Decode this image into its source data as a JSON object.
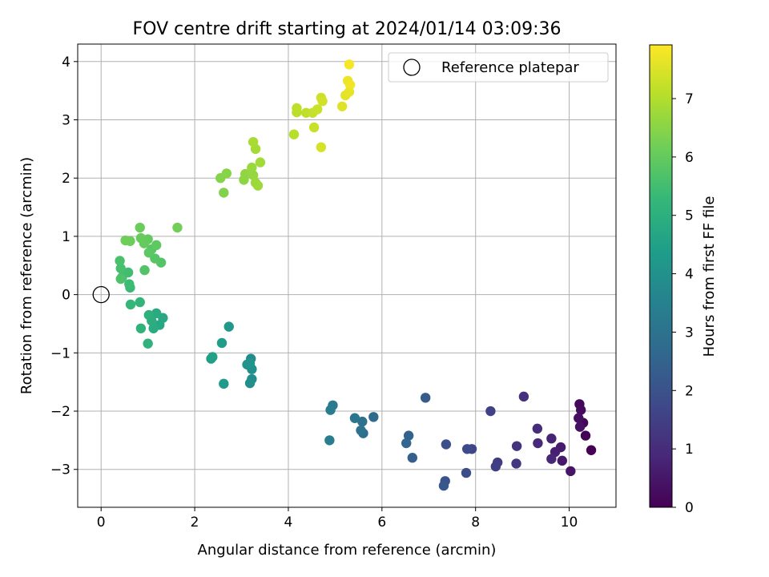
{
  "chart_data": {
    "type": "scatter",
    "title": "FOV centre drift starting at 2024/01/14 03:09:36",
    "xlabel": "Angular distance from reference (arcmin)",
    "ylabel": "Rotation from reference (arcmin)",
    "xlim": [
      -0.5,
      11.0
    ],
    "ylim": [
      -3.65,
      4.3
    ],
    "xticks": [
      0,
      2,
      4,
      6,
      8,
      10
    ],
    "yticks": [
      -3,
      -2,
      -1,
      0,
      1,
      2,
      3,
      4
    ],
    "grid": true,
    "legend": {
      "position": "top-right",
      "entries": [
        "Reference platepar"
      ]
    },
    "reference_point": {
      "label": "Reference platepar",
      "x": 0,
      "y": 0
    },
    "colorbar": {
      "label": "Hours from first FF file",
      "range": [
        0,
        7.92
      ],
      "ticks": [
        0,
        1,
        2,
        3,
        4,
        5,
        6,
        7
      ],
      "colormap": "viridis"
    },
    "points": [
      {
        "x": 10.47,
        "y": -2.67,
        "h": 0.0
      },
      {
        "x": 10.35,
        "y": -2.42,
        "h": 0.06
      },
      {
        "x": 10.3,
        "y": -2.2,
        "h": 0.12
      },
      {
        "x": 10.22,
        "y": -1.88,
        "h": 0.18
      },
      {
        "x": 10.25,
        "y": -1.98,
        "h": 0.24
      },
      {
        "x": 10.2,
        "y": -2.12,
        "h": 0.3
      },
      {
        "x": 10.23,
        "y": -2.27,
        "h": 0.36
      },
      {
        "x": 10.03,
        "y": -3.03,
        "h": 0.45
      },
      {
        "x": 9.85,
        "y": -2.85,
        "h": 0.55
      },
      {
        "x": 9.82,
        "y": -2.62,
        "h": 0.62
      },
      {
        "x": 9.7,
        "y": -2.7,
        "h": 0.7
      },
      {
        "x": 9.62,
        "y": -2.47,
        "h": 0.78
      },
      {
        "x": 9.62,
        "y": -2.82,
        "h": 0.86
      },
      {
        "x": 9.33,
        "y": -2.55,
        "h": 0.94
      },
      {
        "x": 9.32,
        "y": -2.3,
        "h": 1.02
      },
      {
        "x": 9.03,
        "y": -1.75,
        "h": 1.1
      },
      {
        "x": 8.88,
        "y": -2.6,
        "h": 1.2
      },
      {
        "x": 8.87,
        "y": -2.9,
        "h": 1.28
      },
      {
        "x": 8.47,
        "y": -2.88,
        "h": 1.4
      },
      {
        "x": 8.43,
        "y": -2.95,
        "h": 1.48
      },
      {
        "x": 8.32,
        "y": -2.0,
        "h": 1.56
      },
      {
        "x": 7.92,
        "y": -2.65,
        "h": 1.65
      },
      {
        "x": 7.82,
        "y": -2.65,
        "h": 1.75
      },
      {
        "x": 7.8,
        "y": -3.06,
        "h": 1.84
      },
      {
        "x": 7.37,
        "y": -2.57,
        "h": 1.95
      },
      {
        "x": 7.35,
        "y": -3.2,
        "h": 2.05
      },
      {
        "x": 7.32,
        "y": -3.28,
        "h": 2.14
      },
      {
        "x": 6.93,
        "y": -1.77,
        "h": 2.3
      },
      {
        "x": 6.65,
        "y": -2.8,
        "h": 2.4
      },
      {
        "x": 6.57,
        "y": -2.42,
        "h": 2.5
      },
      {
        "x": 6.52,
        "y": -2.55,
        "h": 2.58
      },
      {
        "x": 5.82,
        "y": -2.1,
        "h": 2.75
      },
      {
        "x": 5.6,
        "y": -2.38,
        "h": 2.85
      },
      {
        "x": 5.58,
        "y": -2.18,
        "h": 2.93
      },
      {
        "x": 5.55,
        "y": -2.33,
        "h": 3.0
      },
      {
        "x": 5.42,
        "y": -2.12,
        "h": 3.08
      },
      {
        "x": 4.95,
        "y": -1.9,
        "h": 3.2
      },
      {
        "x": 4.9,
        "y": -1.98,
        "h": 3.28
      },
      {
        "x": 4.88,
        "y": -2.5,
        "h": 3.36
      },
      {
        "x": 3.2,
        "y": -1.1,
        "h": 3.8
      },
      {
        "x": 3.22,
        "y": -1.45,
        "h": 3.88
      },
      {
        "x": 3.18,
        "y": -1.52,
        "h": 3.94
      },
      {
        "x": 3.22,
        "y": -1.28,
        "h": 4.0
      },
      {
        "x": 3.12,
        "y": -1.2,
        "h": 4.06
      },
      {
        "x": 3.18,
        "y": -1.18,
        "h": 4.12
      },
      {
        "x": 2.73,
        "y": -0.55,
        "h": 4.2
      },
      {
        "x": 2.62,
        "y": -1.53,
        "h": 4.28
      },
      {
        "x": 2.58,
        "y": -0.83,
        "h": 4.36
      },
      {
        "x": 2.35,
        "y": -1.1,
        "h": 4.44
      },
      {
        "x": 2.38,
        "y": -1.07,
        "h": 4.5
      },
      {
        "x": 1.32,
        "y": -0.4,
        "h": 4.7
      },
      {
        "x": 1.25,
        "y": -0.52,
        "h": 4.76
      },
      {
        "x": 1.18,
        "y": -0.32,
        "h": 4.82
      },
      {
        "x": 1.12,
        "y": -0.58,
        "h": 4.88
      },
      {
        "x": 1.08,
        "y": -0.45,
        "h": 4.94
      },
      {
        "x": 1.02,
        "y": -0.35,
        "h": 5.0
      },
      {
        "x": 1.0,
        "y": -0.84,
        "h": 5.06
      },
      {
        "x": 0.85,
        "y": -0.58,
        "h": 5.12
      },
      {
        "x": 0.83,
        "y": -0.13,
        "h": 5.18
      },
      {
        "x": 0.63,
        "y": -0.17,
        "h": 5.26
      },
      {
        "x": 0.62,
        "y": 0.12,
        "h": 5.34
      },
      {
        "x": 0.6,
        "y": 0.18,
        "h": 5.4
      },
      {
        "x": 0.58,
        "y": 0.38,
        "h": 5.46
      },
      {
        "x": 0.45,
        "y": 0.3,
        "h": 5.52
      },
      {
        "x": 0.42,
        "y": 0.45,
        "h": 5.58
      },
      {
        "x": 0.4,
        "y": 0.58,
        "h": 5.62
      },
      {
        "x": 0.42,
        "y": 0.27,
        "h": 5.66
      },
      {
        "x": 0.93,
        "y": 0.42,
        "h": 5.72
      },
      {
        "x": 1.28,
        "y": 0.55,
        "h": 5.76
      },
      {
        "x": 1.15,
        "y": 0.62,
        "h": 5.8
      },
      {
        "x": 1.08,
        "y": 0.78,
        "h": 5.84
      },
      {
        "x": 1.02,
        "y": 0.72,
        "h": 5.88
      },
      {
        "x": 1.18,
        "y": 0.85,
        "h": 5.92
      },
      {
        "x": 1.0,
        "y": 0.95,
        "h": 5.96
      },
      {
        "x": 0.92,
        "y": 0.88,
        "h": 6.0
      },
      {
        "x": 0.85,
        "y": 0.97,
        "h": 6.04
      },
      {
        "x": 0.83,
        "y": 1.15,
        "h": 6.08
      },
      {
        "x": 0.62,
        "y": 0.92,
        "h": 6.12
      },
      {
        "x": 0.52,
        "y": 0.93,
        "h": 6.16
      },
      {
        "x": 1.63,
        "y": 1.15,
        "h": 6.2
      },
      {
        "x": 2.62,
        "y": 1.75,
        "h": 6.4
      },
      {
        "x": 2.55,
        "y": 2.0,
        "h": 6.44
      },
      {
        "x": 2.68,
        "y": 2.08,
        "h": 6.48
      },
      {
        "x": 3.05,
        "y": 1.97,
        "h": 6.56
      },
      {
        "x": 3.08,
        "y": 2.07,
        "h": 6.6
      },
      {
        "x": 3.25,
        "y": 2.05,
        "h": 6.64
      },
      {
        "x": 3.22,
        "y": 2.18,
        "h": 6.68
      },
      {
        "x": 3.3,
        "y": 1.92,
        "h": 6.72
      },
      {
        "x": 3.35,
        "y": 1.87,
        "h": 6.76
      },
      {
        "x": 3.4,
        "y": 2.27,
        "h": 6.8
      },
      {
        "x": 3.3,
        "y": 2.5,
        "h": 6.84
      },
      {
        "x": 3.25,
        "y": 2.62,
        "h": 6.88
      },
      {
        "x": 4.12,
        "y": 2.75,
        "h": 7.05
      },
      {
        "x": 4.18,
        "y": 3.13,
        "h": 7.1
      },
      {
        "x": 4.18,
        "y": 3.2,
        "h": 7.14
      },
      {
        "x": 4.38,
        "y": 3.12,
        "h": 7.18
      },
      {
        "x": 4.52,
        "y": 3.12,
        "h": 7.22
      },
      {
        "x": 4.55,
        "y": 2.87,
        "h": 7.26
      },
      {
        "x": 4.62,
        "y": 3.18,
        "h": 7.3
      },
      {
        "x": 4.7,
        "y": 3.38,
        "h": 7.34
      },
      {
        "x": 4.73,
        "y": 3.32,
        "h": 7.38
      },
      {
        "x": 4.7,
        "y": 2.53,
        "h": 7.42
      },
      {
        "x": 5.15,
        "y": 3.23,
        "h": 7.55
      },
      {
        "x": 5.22,
        "y": 3.42,
        "h": 7.6
      },
      {
        "x": 5.3,
        "y": 3.48,
        "h": 7.65
      },
      {
        "x": 5.27,
        "y": 3.67,
        "h": 7.7
      },
      {
        "x": 5.32,
        "y": 3.6,
        "h": 7.76
      },
      {
        "x": 5.3,
        "y": 3.95,
        "h": 7.82
      }
    ]
  }
}
